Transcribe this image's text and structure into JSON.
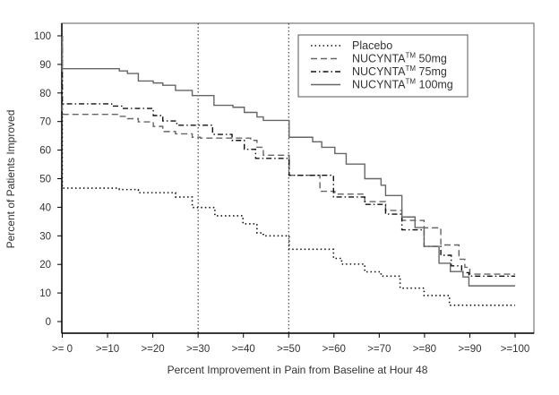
{
  "chart_data": {
    "type": "line",
    "step": true,
    "title": "",
    "xlabel": "Percent Improvement in Pain from Baseline at Hour 48",
    "ylabel": "Percent of Patients Improved",
    "xlim": [
      0,
      100
    ],
    "ylim": [
      0,
      100
    ],
    "x_ticks": [
      0,
      10,
      20,
      30,
      40,
      50,
      60,
      70,
      80,
      90,
      100
    ],
    "x_tick_labels": [
      ">= 0",
      ">=10",
      ">=20",
      ">=30",
      ">=40",
      ">=50",
      ">=60",
      ">=70",
      ">=80",
      ">=90",
      ">=100"
    ],
    "y_ticks": [
      0,
      10,
      20,
      30,
      40,
      50,
      60,
      70,
      80,
      90,
      100
    ],
    "y_tick_labels": [
      "0",
      "10",
      "20",
      "30",
      "40",
      "50",
      "60",
      "70",
      "80",
      "90",
      "100"
    ],
    "reference_lines_x": [
      30,
      50
    ],
    "grid": false,
    "legend_position": "top-right",
    "series": [
      {
        "name": "Placebo",
        "label_base": "Placebo",
        "label_sup": "",
        "label_suffix": "",
        "style": "dotted",
        "color": "#111111",
        "points": [
          [
            0,
            100
          ],
          [
            0,
            46.7
          ],
          [
            12.6,
            46.2
          ],
          [
            16.8,
            45.1
          ],
          [
            25,
            43.6
          ],
          [
            28.7,
            39.9
          ],
          [
            33.7,
            37
          ],
          [
            39.9,
            34.2
          ],
          [
            43,
            31
          ],
          [
            44.4,
            30
          ],
          [
            50.1,
            25.3
          ],
          [
            59.9,
            22.1
          ],
          [
            61.7,
            20.1
          ],
          [
            66.8,
            17.4
          ],
          [
            70.4,
            15.9
          ],
          [
            74.6,
            11.7
          ],
          [
            79.9,
            9.1
          ],
          [
            85.5,
            5.7
          ],
          [
            100,
            5.7
          ]
        ]
      },
      {
        "name": "NUCYNTA 50mg",
        "label_base": "NUCYNTA",
        "label_sup": "TM",
        "label_suffix": " 50mg",
        "style": "dashed",
        "color": "#666666",
        "points": [
          [
            0,
            100
          ],
          [
            0,
            72.5
          ],
          [
            12.6,
            71.8
          ],
          [
            14.4,
            71
          ],
          [
            16.8,
            69.9
          ],
          [
            20.1,
            68.3
          ],
          [
            22.2,
            66.5
          ],
          [
            25,
            65.7
          ],
          [
            28.7,
            64.5
          ],
          [
            30.5,
            64.2
          ],
          [
            41.6,
            63.4
          ],
          [
            43,
            61
          ],
          [
            44.4,
            58.2
          ],
          [
            50.1,
            51.2
          ],
          [
            56.9,
            45.6
          ],
          [
            60.2,
            44.6
          ],
          [
            66.8,
            42
          ],
          [
            71.4,
            38.9
          ],
          [
            75,
            35.4
          ],
          [
            79.9,
            32.8
          ],
          [
            83.6,
            26.8
          ],
          [
            87.6,
            21.8
          ],
          [
            88.9,
            19
          ],
          [
            90,
            16.6
          ],
          [
            100,
            16.6
          ]
        ]
      },
      {
        "name": "NUCYNTA 75mg",
        "label_base": "NUCYNTA",
        "label_sup": "TM",
        "label_suffix": " 75mg",
        "style": "dashdot",
        "color": "#111111",
        "points": [
          [
            0,
            100
          ],
          [
            0,
            76.2
          ],
          [
            10.9,
            75.4
          ],
          [
            13.3,
            74.6
          ],
          [
            20.1,
            72.1
          ],
          [
            22.2,
            70.2
          ],
          [
            25.3,
            68.7
          ],
          [
            33.2,
            65.5
          ],
          [
            37.5,
            63.4
          ],
          [
            40.2,
            60.3
          ],
          [
            42.7,
            57.1
          ],
          [
            50.1,
            51.2
          ],
          [
            59.9,
            43.6
          ],
          [
            66.8,
            41
          ],
          [
            71.4,
            37.6
          ],
          [
            75,
            32.1
          ],
          [
            79.9,
            26.3
          ],
          [
            83.6,
            23.2
          ],
          [
            85.9,
            19.5
          ],
          [
            88.2,
            17.1
          ],
          [
            89.8,
            15.9
          ],
          [
            100,
            15.9
          ]
        ]
      },
      {
        "name": "NUCYNTA 100mg",
        "label_base": "NUCYNTA",
        "label_sup": "TM",
        "label_suffix": " 100mg",
        "style": "solid",
        "color": "#666666",
        "points": [
          [
            0,
            100
          ],
          [
            0,
            88.5
          ],
          [
            12.6,
            87.7
          ],
          [
            14.4,
            86.8
          ],
          [
            16.8,
            84.2
          ],
          [
            20.1,
            83.5
          ],
          [
            22.2,
            82.7
          ],
          [
            25,
            80.9
          ],
          [
            28.7,
            79.1
          ],
          [
            33.5,
            75.7
          ],
          [
            37.7,
            75
          ],
          [
            40.2,
            73.2
          ],
          [
            43,
            71.6
          ],
          [
            44.4,
            70.4
          ],
          [
            50.1,
            64.5
          ],
          [
            55.3,
            62.9
          ],
          [
            57.3,
            61
          ],
          [
            60.2,
            58.8
          ],
          [
            62.7,
            55.1
          ],
          [
            66.8,
            50
          ],
          [
            70.4,
            47.7
          ],
          [
            71.4,
            44.1
          ],
          [
            75,
            36.6
          ],
          [
            77.9,
            32.9
          ],
          [
            79.9,
            26.3
          ],
          [
            83.2,
            20.4
          ],
          [
            85.7,
            17.5
          ],
          [
            88.5,
            15.6
          ],
          [
            89.8,
            12.5
          ],
          [
            100,
            12.5
          ]
        ]
      }
    ]
  }
}
